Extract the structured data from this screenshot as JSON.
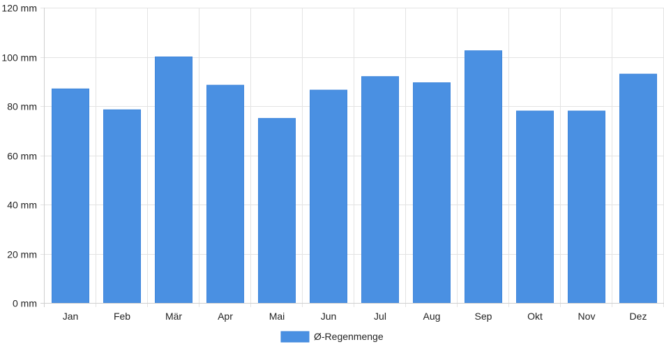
{
  "chart_data": {
    "type": "bar",
    "categories": [
      "Jan",
      "Feb",
      "Mär",
      "Apr",
      "Mai",
      "Jun",
      "Jul",
      "Aug",
      "Sep",
      "Okt",
      "Nov",
      "Dez"
    ],
    "series": [
      {
        "name": "Ø-Regenmenge",
        "values": [
          87,
          78.5,
          100,
          88.5,
          75,
          86.5,
          92,
          89.5,
          102.5,
          78,
          78,
          93
        ],
        "color": "#4a90e2"
      }
    ],
    "ylim": [
      0,
      120
    ],
    "y_ticks": [
      0,
      20,
      40,
      60,
      80,
      100,
      120
    ],
    "y_tick_labels": [
      "0 mm",
      "20 mm",
      "40 mm",
      "60 mm",
      "80 mm",
      "100 mm",
      "120 mm"
    ],
    "grid": true,
    "legend_position": "bottom"
  }
}
